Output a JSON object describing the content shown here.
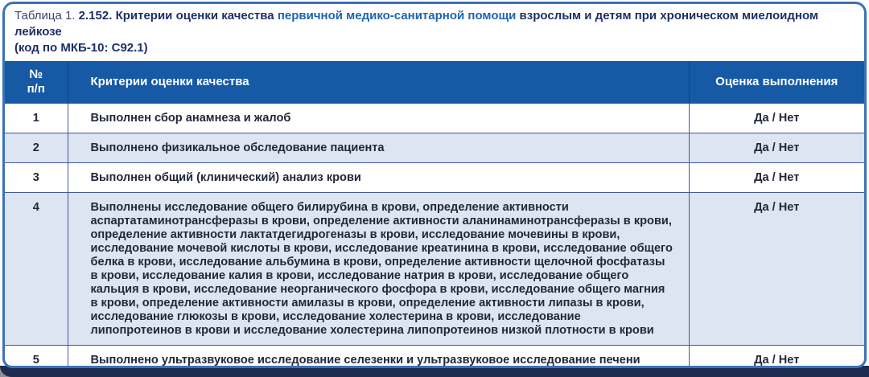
{
  "title": {
    "prefix": "Таблица 1.",
    "number": "2.152.",
    "lead": "Критерии оценки качества",
    "highlight": "первичной медико-санитарной помощи",
    "tail": "взрослым и детям при хроническом миелоидном лейкозе",
    "code": "(код по МКБ-10: C92.1)"
  },
  "table": {
    "col_num": "№\nп/п",
    "col_criteria": "Критерии оценки качества",
    "col_mark": "Оценка выполнения",
    "rows": [
      {
        "num": "1",
        "criteria": "Выполнен сбор анамнеза и жалоб",
        "mark": "Да / Нет"
      },
      {
        "num": "2",
        "criteria": "Выполнено физикальное обследование пациента",
        "mark": "Да / Нет"
      },
      {
        "num": "3",
        "criteria": "Выполнен общий (клинический) анализ крови",
        "mark": "Да / Нет"
      },
      {
        "num": "4",
        "criteria": "Выполнены исследование общего билирубина в крови, определение активности аспартатаминотрансферазы в крови, определение активности аланинаминотрансферазы в крови, определение активности лактатдегидрогеназы в крови, исследование мочевины в крови, исследование мочевой кислоты в крови, исследование креатинина в крови, исследование общего белка в крови, исследование альбумина в крови, определение активности щелочной фосфатазы в крови, исследование калия в крови, исследование натрия в крови, исследование общего кальция в крови, исследование неорганического фосфора в крови, исследование общего магния в крови, определение активности амилазы в крови, определение активности липазы в крови, исследование глюкозы в крови, исследование холестерина в крови, исследование липопротеинов в крови и исследование холестерина липопротеинов низкой плотности в крови",
        "mark": "Да / Нет"
      },
      {
        "num": "5",
        "criteria": "Выполнено ультразвуковое исследование селезенки и ультразвуковое исследование печени",
        "mark": "Да / Нет"
      }
    ]
  },
  "colors": {
    "header-bg": "#1659a5",
    "alt-row-bg": "#dde4f2",
    "grid": "#42589d",
    "card-border": "#3a72b8",
    "strip": "#202b52",
    "title-navy": "#1e2f66",
    "title-blue": "#1d64b0",
    "body-text": "#23273a"
  }
}
